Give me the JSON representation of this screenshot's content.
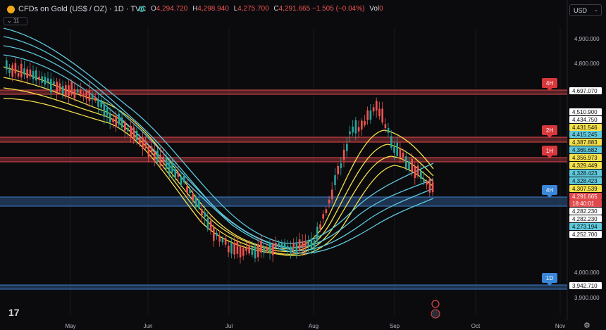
{
  "header": {
    "symbol": "CFDs on Gold (US$ / OZ) · 1D · TVC",
    "ohlc": [
      {
        "key": "O",
        "value": "4,294.720"
      },
      {
        "key": "H",
        "value": "4,298.940"
      },
      {
        "key": "L",
        "value": "4,275.700"
      },
      {
        "key": "C",
        "value": "4,291.665 −1.505 (−0.04%)"
      },
      {
        "key": "Vol",
        "value": "0"
      }
    ],
    "indicators_count": "11",
    "currency": "USD"
  },
  "colors": {
    "background": "#0b0b0e",
    "up": "#26a69a",
    "down": "#ef5350",
    "ma_yellow": "#f5e04a",
    "ma_cyan": "#5ec8dc",
    "red_zone": "#e0484c",
    "blue_zone": "#3e7ec8"
  },
  "price_axis": {
    "ticks": [
      "4,900.000",
      "4,800.000",
      "4,100.000",
      "4,000.000",
      "3,900.000"
    ],
    "labels": [
      {
        "text": "4,697.070",
        "style": "white"
      },
      {
        "text": "4,510.900",
        "style": "white"
      },
      {
        "text": "4,434.750",
        "style": "white"
      },
      {
        "text": "4,431.546",
        "style": "yellow"
      },
      {
        "text": "4,415.245",
        "style": "cyan"
      },
      {
        "text": "4,387.883",
        "style": "yellow"
      },
      {
        "text": "4,365.682",
        "style": "cyan"
      },
      {
        "text": "4,356.973",
        "style": "yellow"
      },
      {
        "text": "4,329.449",
        "style": "yellow"
      },
      {
        "text": "4,328.423",
        "style": "cyan"
      },
      {
        "text": "4,328.423",
        "style": "cyan"
      },
      {
        "text": "4,307.539",
        "style": "yellow"
      },
      {
        "text": "4,291.665",
        "style": "red"
      },
      {
        "text": "18:40:01",
        "style": "red"
      },
      {
        "text": "4,282.230",
        "style": "white"
      },
      {
        "text": "4,282.230",
        "style": "white"
      },
      {
        "text": "4,273.194",
        "style": "cyan"
      },
      {
        "text": "4,252.700",
        "style": "white"
      },
      {
        "text": "3,942.710",
        "style": "white"
      }
    ]
  },
  "time_axis": [
    "May",
    "Jun",
    "Jul",
    "Aug",
    "Sep",
    "Oct",
    "Nov"
  ],
  "zones": [
    {
      "label": "4H",
      "color": "red"
    },
    {
      "label": "2H",
      "color": "red"
    },
    {
      "label": "1H",
      "color": "red"
    },
    {
      "label": "4H",
      "color": "blue"
    },
    {
      "label": "1D",
      "color": "blue"
    }
  ],
  "branding": {
    "logo": "17"
  }
}
